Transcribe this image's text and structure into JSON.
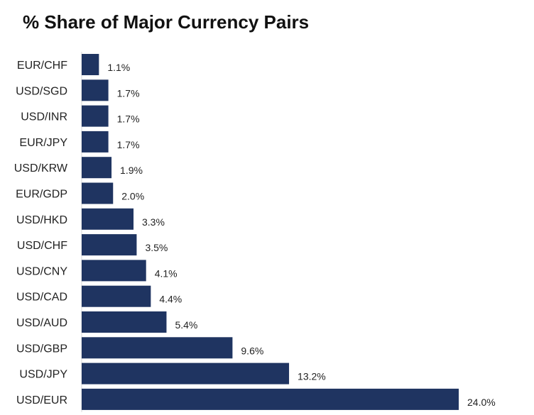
{
  "chart_data": {
    "type": "bar",
    "orientation": "horizontal",
    "title": "% Share of Major Currency Pairs",
    "xlabel": "",
    "ylabel": "",
    "categories": [
      "EUR/CHF",
      "USD/SGD",
      "USD/INR",
      "EUR/JPY",
      "USD/KRW",
      "EUR/GDP",
      "USD/HKD",
      "USD/CHF",
      "USD/CNY",
      "USD/CAD",
      "USD/AUD",
      "USD/GBP",
      "USD/JPY",
      "USD/EUR"
    ],
    "values": [
      1.1,
      1.7,
      1.7,
      1.7,
      1.9,
      2.0,
      3.3,
      3.5,
      4.1,
      4.4,
      5.4,
      9.6,
      13.2,
      24.0
    ],
    "value_labels": [
      "1.1%",
      "1.7%",
      "1.7%",
      "1.7%",
      "1.9%",
      "2.0%",
      "3.3%",
      "3.5%",
      "4.1%",
      "4.4%",
      "5.4%",
      "9.6%",
      "13.2%",
      "24.0%"
    ],
    "xlim": [
      0,
      24.0
    ],
    "grid": false,
    "legend": "none",
    "bar_color": "#1f3461"
  }
}
